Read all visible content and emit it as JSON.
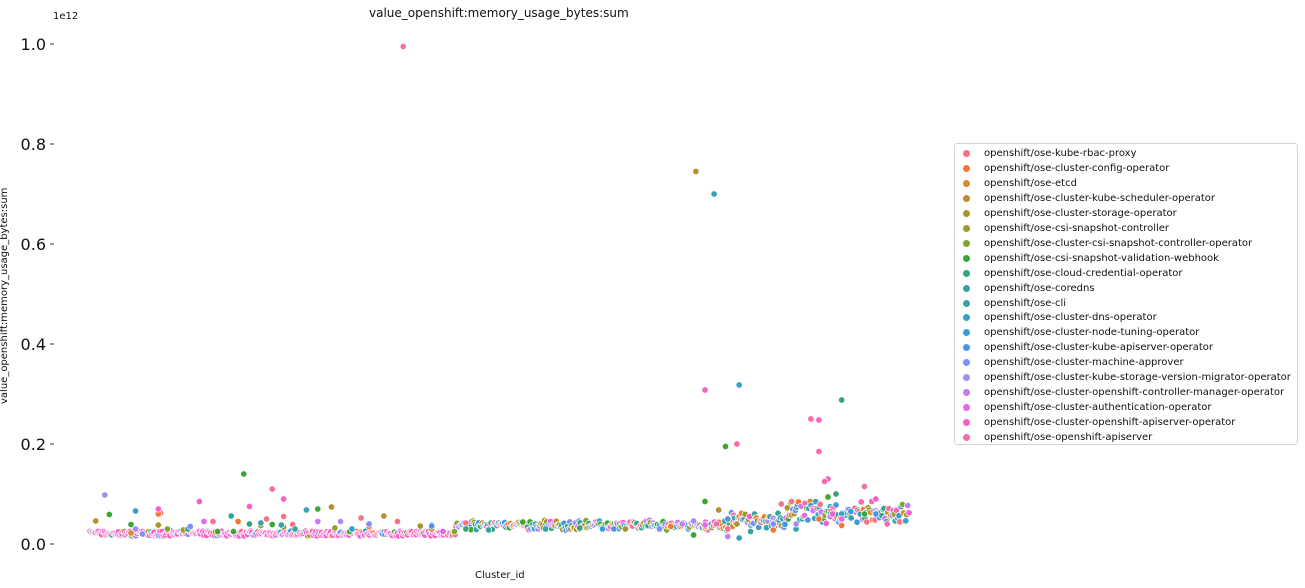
{
  "chart_data": {
    "type": "scatter",
    "title": "value_openshift:memory_usage_bytes:sum",
    "xlabel": "Cluster_id",
    "ylabel": "value_openshift:memory_usage_bytes:sum",
    "y_offset_label": "1e12",
    "ylim": [
      0,
      1.0
    ],
    "y_ticks": [
      "0.0",
      "0.2",
      "0.4",
      "0.6",
      "0.8",
      "1.0"
    ],
    "x_ticks_visible": false,
    "grid": false,
    "legend_position": "right",
    "series": [
      {
        "name": "openshift/ose-kube-rbac-proxy",
        "color": "#f77189",
        "points": [
          [
            62,
            0.062
          ],
          [
            108,
            0.045
          ],
          [
            155,
            0.05
          ],
          [
            170,
            0.055
          ],
          [
            178,
            0.039
          ],
          [
            238,
            0.052
          ],
          [
            270,
            0.045
          ],
          [
            330,
            0.042
          ],
          [
            520,
            0.04
          ],
          [
            560,
            0.03
          ],
          [
            607,
            0.08
          ],
          [
            616,
            0.085
          ],
          [
            650,
            0.065
          ]
        ]
      },
      {
        "name": "openshift/ose-cluster-config-operator",
        "color": "#f37932",
        "points": [
          [
            60,
            0.06
          ],
          [
            130,
            0.045
          ],
          [
            245,
            0.035
          ],
          [
            300,
            0.034
          ],
          [
            510,
            0.035
          ],
          [
            540,
            0.032
          ],
          [
            600,
            0.028
          ],
          [
            640,
            0.05
          ],
          [
            660,
            0.037
          ]
        ]
      },
      {
        "name": "openshift/ose-etcd",
        "color": "#d98a2a",
        "points": [
          [
            36,
            0.022
          ],
          [
            110,
            0.024
          ],
          [
            300,
            0.03
          ],
          [
            540,
            0.035
          ]
        ]
      },
      {
        "name": "openshift/ose-cluster-kube-scheduler-operator",
        "color": "#bb8e30",
        "points": [
          [
            5,
            0.046
          ],
          [
            212,
            0.074
          ],
          [
            258,
            0.056
          ],
          [
            532,
            0.745
          ],
          [
            552,
            0.068
          ],
          [
            620,
            0.03
          ]
        ]
      },
      {
        "name": "openshift/ose-cluster-storage-operator",
        "color": "#a8952f",
        "points": [
          [
            60,
            0.038
          ],
          [
            150,
            0.037
          ],
          [
            290,
            0.036
          ],
          [
            430,
            0.03
          ]
        ]
      },
      {
        "name": "openshift/ose-csi-snapshot-controller",
        "color": "#9a9a32",
        "points": [
          [
            82,
            0.028
          ],
          [
            215,
            0.032
          ],
          [
            470,
            0.03
          ]
        ]
      },
      {
        "name": "openshift/ose-cluster-csi-snapshot-controller-operator",
        "color": "#7fa531",
        "points": [
          [
            68,
            0.03
          ],
          [
            170,
            0.034
          ],
          [
            320,
            0.025
          ],
          [
            600,
            0.04
          ]
        ]
      },
      {
        "name": "openshift/ose-csi-snapshot-validation-webhook",
        "color": "#3ba635",
        "points": [
          [
            17,
            0.059
          ],
          [
            36,
            0.039
          ],
          [
            112,
            0.025
          ],
          [
            126,
            0.025
          ],
          [
            135,
            0.14
          ],
          [
            160,
            0.039
          ],
          [
            200,
            0.07
          ],
          [
            228,
            0.025
          ],
          [
            300,
            0.038
          ],
          [
            380,
            0.044
          ],
          [
            530,
            0.018
          ],
          [
            540,
            0.085
          ],
          [
            558,
            0.195
          ],
          [
            648,
            0.094
          ],
          [
            680,
            0.06
          ]
        ]
      },
      {
        "name": "openshift/ose-cloud-credential-operator",
        "color": "#34a47b",
        "points": [
          [
            86,
            0.03
          ],
          [
            140,
            0.04
          ],
          [
            330,
            0.03
          ],
          [
            430,
            0.032
          ],
          [
            655,
            0.1
          ],
          [
            660,
            0.288
          ]
        ]
      },
      {
        "name": "openshift/ose-coredns",
        "color": "#36a398",
        "points": [
          [
            124,
            0.056
          ],
          [
            180,
            0.03
          ],
          [
            350,
            0.028
          ],
          [
            580,
            0.025
          ],
          [
            650,
            0.06
          ]
        ]
      },
      {
        "name": "openshift/ose-cli",
        "color": "#37a2ac",
        "points": [
          [
            150,
            0.042
          ],
          [
            168,
            0.038
          ],
          [
            400,
            0.03
          ],
          [
            548,
            0.7
          ],
          [
            620,
            0.03
          ]
        ]
      },
      {
        "name": "openshift/ose-cluster-dns-operator",
        "color": "#39a0bf",
        "points": [
          [
            40,
            0.066
          ],
          [
            190,
            0.068
          ],
          [
            570,
            0.012
          ],
          [
            660,
            0.06
          ]
        ]
      },
      {
        "name": "openshift/ose-cluster-node-tuning-operator",
        "color": "#3a9dd3",
        "points": [
          [
            230,
            0.03
          ],
          [
            450,
            0.03
          ],
          [
            570,
            0.318
          ],
          [
            668,
            0.065
          ]
        ]
      },
      {
        "name": "openshift/ose-cluster-kube-apiserver-operator",
        "color": "#4a95e8",
        "points": [
          [
            300,
            0.036
          ],
          [
            460,
            0.03
          ],
          [
            560,
            0.05
          ],
          [
            655,
            0.078
          ],
          [
            690,
            0.06
          ]
        ]
      },
      {
        "name": "openshift/ose-cluster-machine-approver",
        "color": "#7e8ff5",
        "points": [
          [
            46,
            0.02
          ],
          [
            88,
            0.035
          ],
          [
            245,
            0.04
          ],
          [
            500,
            0.03
          ],
          [
            600,
            0.04
          ]
        ]
      },
      {
        "name": "openshift/ose-cluster-kube-storage-version-migrator-operator",
        "color": "#a48cf4",
        "points": [
          [
            13,
            0.098
          ],
          [
            40,
            0.03
          ],
          [
            220,
            0.045
          ],
          [
            530,
            0.046
          ],
          [
            620,
            0.04
          ]
        ]
      },
      {
        "name": "openshift/ose-cluster-openshift-controller-manager-operator",
        "color": "#c77cf4",
        "points": [
          [
            200,
            0.045
          ],
          [
            520,
            0.04
          ],
          [
            560,
            0.015
          ],
          [
            650,
            0.055
          ]
        ]
      },
      {
        "name": "openshift/ose-cluster-authentication-operator",
        "color": "#e667e8",
        "points": [
          [
            100,
            0.045
          ],
          [
            310,
            0.025
          ],
          [
            540,
            0.038
          ],
          [
            660,
            0.05
          ]
        ]
      },
      {
        "name": "openshift/ose-cluster-openshift-apiserver-operator",
        "color": "#f561c7",
        "points": [
          [
            60,
            0.07
          ],
          [
            96,
            0.085
          ],
          [
            140,
            0.075
          ],
          [
            170,
            0.09
          ],
          [
            540,
            0.308
          ],
          [
            640,
            0.248
          ],
          [
            648,
            0.13
          ],
          [
            652,
            0.06
          ],
          [
            690,
            0.09
          ]
        ]
      },
      {
        "name": "openshift/ose-openshift-apiserver",
        "color": "#f66ba8",
        "points": [
          [
            275,
            0.995
          ],
          [
            160,
            0.11
          ],
          [
            550,
            0.04
          ],
          [
            568,
            0.2
          ],
          [
            633,
            0.25
          ],
          [
            640,
            0.185
          ],
          [
            645,
            0.125
          ],
          [
            680,
            0.115
          ],
          [
            700,
            0.04
          ]
        ]
      }
    ],
    "background_band": {
      "n": 720,
      "base": 0.016,
      "spread": 0.01
    }
  }
}
